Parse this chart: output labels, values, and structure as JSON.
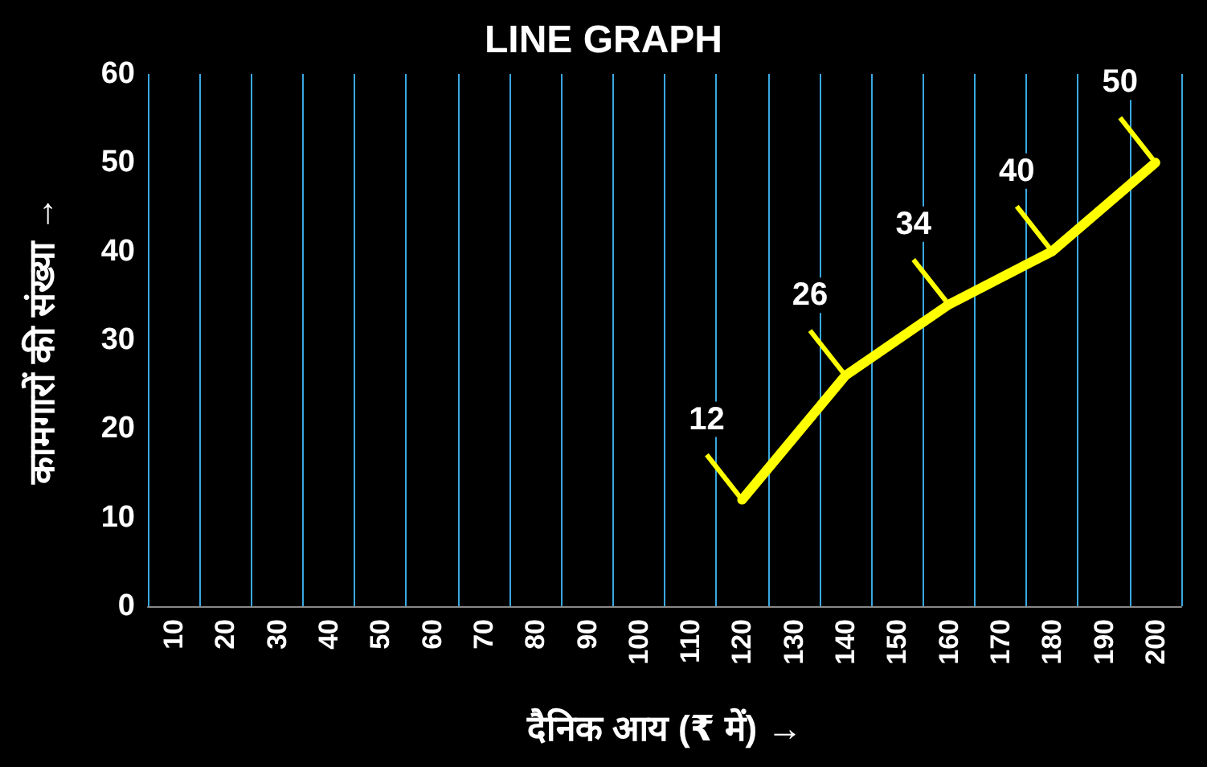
{
  "chart_data": {
    "type": "line",
    "title": "LINE GRAPH",
    "xlabel": "दैनिक आय (₹ में) →",
    "ylabel": "कामगारों की संख्या →",
    "categories": [
      "10",
      "20",
      "30",
      "40",
      "50",
      "60",
      "70",
      "80",
      "90",
      "100",
      "110",
      "120",
      "130",
      "140",
      "150",
      "160",
      "170",
      "180",
      "190",
      "200"
    ],
    "series": [
      {
        "color": "#ffff00",
        "values": [
          null,
          null,
          null,
          null,
          null,
          null,
          null,
          null,
          null,
          null,
          null,
          12,
          null,
          26,
          null,
          34,
          null,
          40,
          null,
          50
        ]
      }
    ],
    "ylim": [
      0,
      60
    ],
    "yticks": [
      0,
      10,
      20,
      30,
      40,
      50,
      60
    ],
    "grid": "x",
    "marker": "none",
    "line_style": "solid",
    "data_labels": true
  }
}
